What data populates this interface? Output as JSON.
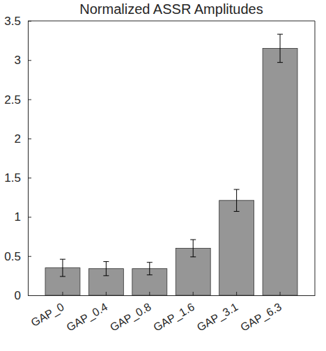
{
  "chart_data": {
    "type": "bar",
    "title": "Normalized ASSR Amplitudes",
    "categories": [
      "GAP_0",
      "GAP_0.4",
      "GAP_0.8",
      "GAP_1.6",
      "GAP_3.1",
      "GAP_6.3"
    ],
    "values": [
      0.35,
      0.34,
      0.34,
      0.6,
      1.21,
      3.15
    ],
    "errors": [
      0.11,
      0.09,
      0.08,
      0.11,
      0.14,
      0.18
    ],
    "color": "#969696",
    "ylim": [
      0,
      3.5
    ],
    "yticks": [
      0,
      0.5,
      1,
      1.5,
      2,
      2.5,
      3,
      3.5
    ],
    "grid": false
  }
}
